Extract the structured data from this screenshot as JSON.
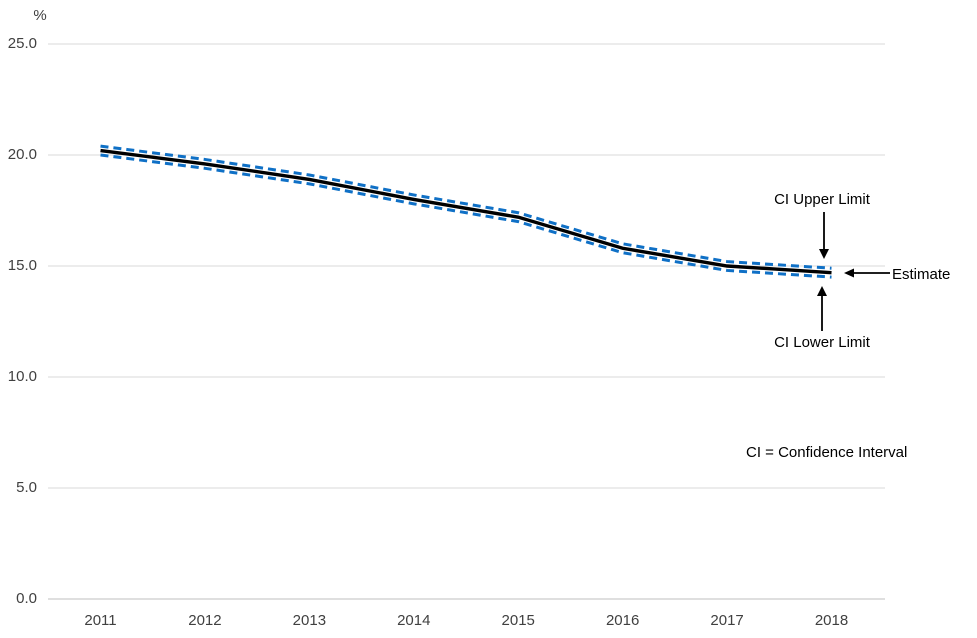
{
  "chart_data": {
    "type": "line",
    "title": "",
    "xlabel": "",
    "ylabel": "%",
    "ylim": [
      0,
      25
    ],
    "yticks": [
      0,
      5,
      10,
      15,
      20,
      25
    ],
    "ytick_labels": [
      "0.0",
      "5.0",
      "10.0",
      "15.0",
      "20.0",
      "25.0"
    ],
    "x_labels": [
      "2011",
      "2012",
      "2013",
      "2014",
      "2015",
      "2016",
      "2017",
      "2018"
    ],
    "grid": "horizontal",
    "legend_position": "none",
    "series": [
      {
        "name": "CI Upper Limit",
        "style": "dashed",
        "color": "#0f70c6",
        "values": [
          20.4,
          19.8,
          19.1,
          18.2,
          17.4,
          16.0,
          15.2,
          14.9
        ]
      },
      {
        "name": "Estimate",
        "style": "solid",
        "color": "#000000",
        "values": [
          20.2,
          19.6,
          18.9,
          18.0,
          17.2,
          15.8,
          15.0,
          14.7
        ]
      },
      {
        "name": "CI Lower Limit",
        "style": "dashed",
        "color": "#0f70c6",
        "values": [
          20.0,
          19.4,
          18.7,
          17.8,
          17.0,
          15.6,
          14.8,
          14.5
        ]
      }
    ],
    "annotations": {
      "upper": "CI Upper Limit",
      "estimate": "Estimate",
      "lower": "CI Lower Limit",
      "note": "CI = Confidence Interval"
    },
    "colors": {
      "ci_line": "#0f70c6",
      "estimate_line": "#000000",
      "gridline": "#d9d9d9",
      "axis_line": "#bfbfbf",
      "tick_text": "#404040",
      "annotation_text": "#000000"
    }
  }
}
